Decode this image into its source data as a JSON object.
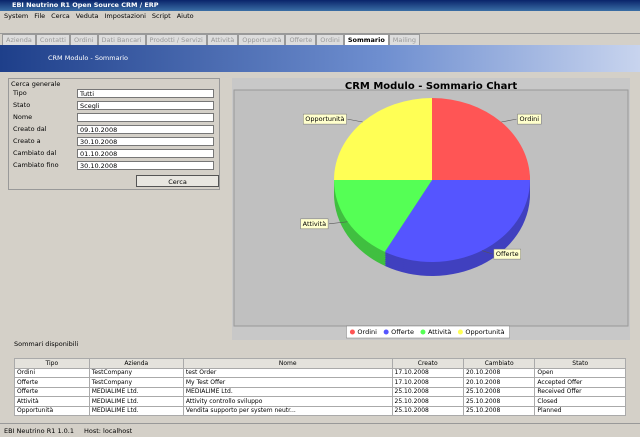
{
  "window": {
    "title": "EBI Neutrino R1 Open Source CRM / ERP"
  },
  "menu": [
    "System",
    "File",
    "Cerca",
    "Veduta",
    "Impostazioni",
    "Script",
    "Aiuto"
  ],
  "tabs": [
    "Azienda",
    "Contatti",
    "Ordini",
    "Dati Bancari",
    "Prodotti / Servizi",
    "Attività",
    "Opportunità",
    "Offerte",
    "Ordini",
    "Sommario",
    "Mailing"
  ],
  "header": "CRM Modulo - Sommario",
  "search": {
    "title": "Cerca generale",
    "fields": [
      {
        "label": "Tipo",
        "value": "Tutti"
      },
      {
        "label": "Stato",
        "value": "Scegli"
      },
      {
        "label": "Nome"
      },
      {
        "label": "Creato dal",
        "value": "09.10.2008"
      },
      {
        "label": "Creato a",
        "value": "30.10.2008"
      },
      {
        "label": "Cambiato dal",
        "value": "01.10.2008"
      },
      {
        "label": "Cambiato fino",
        "value": "30.10.2008"
      }
    ],
    "button": "Cerca"
  },
  "chart_data": {
    "type": "pie",
    "title": "CRM Modulo - Sommario Chart",
    "categories": [
      "Ordini",
      "Offerte",
      "Attività",
      "Opportunità"
    ],
    "values": [
      25,
      33,
      17,
      25
    ],
    "colors": [
      "#ff5555",
      "#5555ff",
      "#55ff55",
      "#ffff55"
    ]
  },
  "results": {
    "title": "Sommari disponibili",
    "columns": [
      "Tipo",
      "Azienda",
      "Nome",
      "Creato",
      "Cambiato",
      "Stato"
    ],
    "rows": [
      [
        "Ordini",
        "TestCompany",
        "test Order",
        "17.10.2008",
        "20.10.2008",
        "Open"
      ],
      [
        "Offerte",
        "TestCompany",
        "My Test Offer",
        "17.10.2008",
        "20.10.2008",
        "Accepted Offer"
      ],
      [
        "Offerte",
        "MEDIALIME Ltd.",
        "MEDIALIME Ltd.",
        "25.10.2008",
        "25.10.2008",
        "Received Offer"
      ],
      [
        "Attività",
        "MEDIALIME Ltd.",
        "Attivity controllo sviluppo",
        "25.10.2008",
        "25.10.2008",
        "Closed"
      ],
      [
        "Opportunità",
        "MEDIALIME Ltd.",
        "Vendita supporto per system neutr...",
        "25.10.2008",
        "25.10.2008",
        "Planned"
      ]
    ]
  },
  "status": [
    "EBI Neutrino R1 1.0.1",
    "Host: localhost"
  ]
}
